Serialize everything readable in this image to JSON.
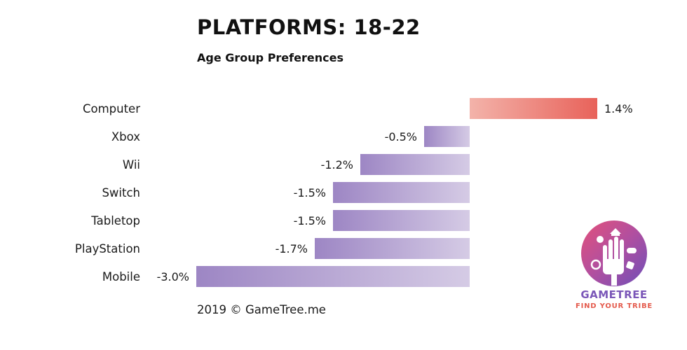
{
  "header": {
    "title": "PLATFORMS: 18-22",
    "subtitle": "Age Group Preferences"
  },
  "footer": {
    "copyright": "2019 © GameTree.me"
  },
  "logo": {
    "name": "GAMETREE",
    "tagline": "FIND YOUR TRIBE"
  },
  "colors": {
    "positive_start": "#f3b3aa",
    "positive_end": "#e8625a",
    "negative_start": "#9d86c4",
    "negative_end": "#d5cbe5"
  },
  "chart_data": {
    "type": "bar",
    "orientation": "horizontal",
    "title": "PLATFORMS: 18-22",
    "subtitle": "Age Group Preferences",
    "categories": [
      "Computer",
      "Xbox",
      "Wii",
      "Switch",
      "Tabletop",
      "PlayStation",
      "Mobile"
    ],
    "values": [
      1.4,
      -0.5,
      -1.2,
      -1.5,
      -1.5,
      -1.7,
      -3.0
    ],
    "value_labels": [
      "1.4%",
      "-0.5%",
      "-1.2%",
      "-1.5%",
      "-1.5%",
      "-1.7%",
      "-3.0%"
    ],
    "xlim": [
      -3.0,
      1.4
    ],
    "unit": "%",
    "grid": false,
    "legend": "none"
  }
}
